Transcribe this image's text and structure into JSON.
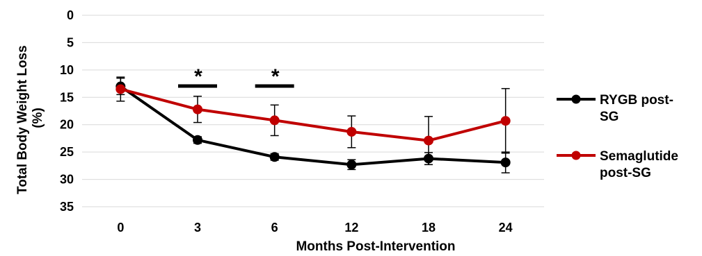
{
  "chart_data": {
    "type": "line",
    "categories": [
      "0",
      "3",
      "6",
      "12",
      "18",
      "24"
    ],
    "xlabel": "Months Post-Intervention",
    "ylabel_lines": [
      "Total Body Weight Loss",
      "(%)"
    ],
    "y_ticks": [
      "0",
      "5",
      "10",
      "15",
      "20",
      "25",
      "30",
      "35"
    ],
    "ylim": [
      0,
      35
    ],
    "y_inverted": true,
    "grid": true,
    "legend_position": "right",
    "series": [
      {
        "name": "RYGB post-SG",
        "legend_lines": [
          "RYGB post-",
          "SG"
        ],
        "color": "#000000",
        "values": [
          13.0,
          22.8,
          25.9,
          27.3,
          26.2,
          26.9
        ],
        "error": [
          1.5,
          0.6,
          0.6,
          0.9,
          1.1,
          1.9
        ]
      },
      {
        "name": "Semaglutide post-SG",
        "legend_lines": [
          "Semaglutide",
          "post-SG"
        ],
        "color": "#c00000",
        "values": [
          13.5,
          17.2,
          19.2,
          21.3,
          22.9,
          19.3
        ],
        "error": [
          2.2,
          2.4,
          2.8,
          2.9,
          4.4,
          5.9
        ]
      }
    ],
    "annotations": [
      {
        "text": "*",
        "category": "3"
      },
      {
        "text": "*",
        "category": "6"
      }
    ]
  }
}
